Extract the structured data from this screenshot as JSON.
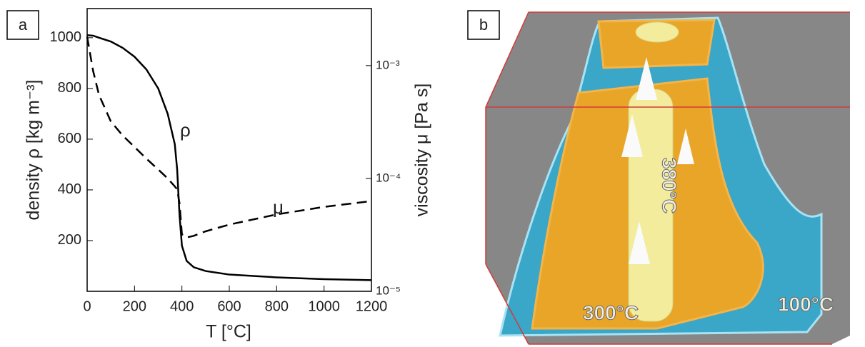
{
  "chart_data": {
    "type": "line",
    "panel_label": "a",
    "xlabel": "T [°C]",
    "ylabel": "density ρ [kg m⁻³]",
    "y2label": "viscosity μ [Pa s]",
    "annotations": [
      "ρ",
      "μ"
    ],
    "x": [
      0,
      25,
      50,
      100,
      150,
      200,
      250,
      300,
      340,
      370,
      380,
      390,
      400,
      420,
      450,
      500,
      600,
      800,
      1000,
      1200
    ],
    "series": [
      {
        "color": "#000000",
        "line_style": "solid",
        "values": [
          1010,
          1008,
          1000,
          985,
          960,
          925,
          875,
          800,
          700,
          580,
          480,
          300,
          180,
          120,
          95,
          80,
          66,
          55,
          48,
          44
        ]
      },
      {
        "color": "#000000",
        "line_style": "dashed",
        "axis": "y2",
        "values": [
          0.0018,
          0.0009,
          0.00055,
          0.00032,
          0.00024,
          0.00019,
          0.00015,
          0.00012,
          0.0001,
          8.5e-05,
          8e-05,
          6e-05,
          3.2e-05,
          3e-05,
          3.1e-05,
          3.4e-05,
          3.9e-05,
          4.8e-05,
          5.6e-05,
          6.3e-05
        ]
      }
    ],
    "xlim": [
      0,
      1200
    ],
    "xticks": [
      0,
      200,
      400,
      600,
      800,
      1000,
      1200
    ],
    "ylim": [
      0,
      1115
    ],
    "yticks": [
      200,
      400,
      600,
      800,
      1000
    ],
    "y2lim": [
      1e-05,
      0.0032
    ],
    "y2_scale": "log",
    "y2ticks": [
      {
        "value": 1e-05,
        "label": "10⁻⁵"
      },
      {
        "value": 0.0001,
        "label": "10⁻⁴"
      },
      {
        "value": 0.001,
        "label": "10⁻³"
      }
    ],
    "grid": false
  },
  "panel_b": {
    "label": "b",
    "temperature_labels": [
      "380°C",
      "300°C",
      "100°C"
    ]
  }
}
